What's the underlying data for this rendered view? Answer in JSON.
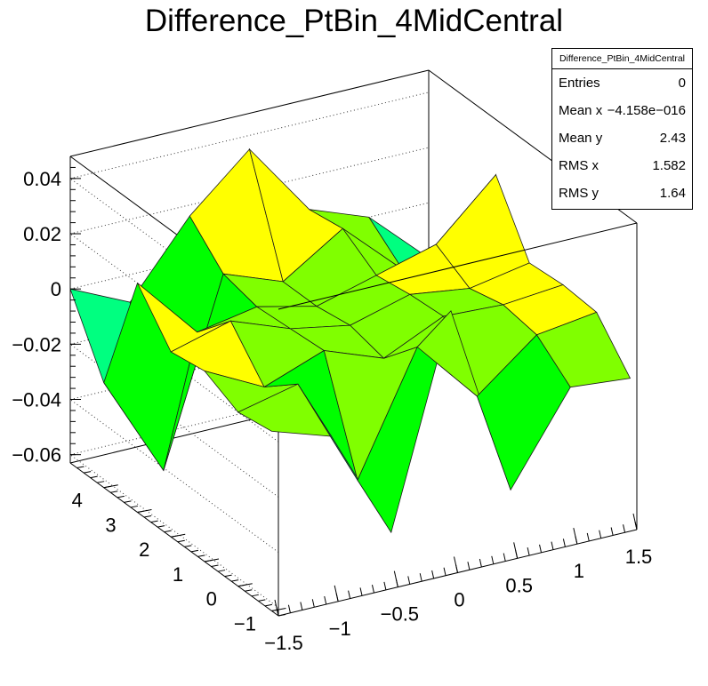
{
  "title": "Difference_PtBin_4MidCentral",
  "stats": {
    "name": "Difference_PtBin_4MidCentral",
    "rows": [
      {
        "label": "Entries",
        "value": "0"
      },
      {
        "label": "Mean x",
        "value": "−4.158e−016"
      },
      {
        "label": "Mean y",
        "value": "2.43"
      },
      {
        "label": "RMS x",
        "value": "1.582"
      },
      {
        "label": "RMS y",
        "value": "1.64"
      }
    ]
  },
  "chart_data": {
    "type": "surface",
    "title": "Difference_PtBin_4MidCentral",
    "x": [
      -1.5,
      -1.0,
      -0.5,
      0.0,
      0.5,
      1.0,
      1.5
    ],
    "y": [
      -1.0,
      0.0,
      1.0,
      2.0,
      3.0,
      4.0,
      5.0
    ],
    "xlim": [
      -1.5,
      1.5
    ],
    "ylim": [
      -1.2,
      5.0
    ],
    "zlim": [
      -0.063,
      0.048
    ],
    "x_ticks": [
      "−1.5",
      "−1",
      "−0.5",
      "0",
      "0.5",
      "1",
      "1.5"
    ],
    "x_tick_values": [
      -1.5,
      -1.0,
      -0.5,
      0.0,
      0.5,
      1.0,
      1.5
    ],
    "y_ticks": [
      "−1",
      "0",
      "1",
      "2",
      "3",
      "4"
    ],
    "y_tick_values": [
      -1,
      0,
      1,
      2,
      3,
      4
    ],
    "z_ticks": [
      "−0.06",
      "−0.04",
      "−0.02",
      "0",
      "0.02",
      "0.04"
    ],
    "z_tick_values": [
      -0.06,
      -0.04,
      -0.02,
      0.0,
      0.02,
      0.04
    ],
    "z_values": [
      [
        0.002,
        -0.005,
        -0.045,
        0.03,
        -0.04,
        -0.008,
        -0.01
      ],
      [
        0.0,
        0.005,
        -0.035,
        0.008,
        -0.015,
        0.002,
        0.005
      ],
      [
        0.006,
        -0.005,
        0.003,
        -0.005,
        0.005,
        0.004,
        0.006
      ],
      [
        0.004,
        0.01,
        0.002,
        -0.002,
        0.004,
        0.001,
        0.005
      ],
      [
        0.02,
        -0.003,
        0.001,
        -0.004,
        0.002,
        0.008,
        0.028
      ],
      [
        -0.025,
        -0.062,
        0.004,
        -0.004,
        0.01,
        -0.01,
        -0.055
      ],
      [
        0.0,
        -0.01,
        0.016,
        0.035,
        0.008,
        0.0,
        -0.02
      ]
    ],
    "colors": [
      "#2b00ff",
      "#0080ff",
      "#00ffff",
      "#00ff80",
      "#00ff00",
      "#80ff00",
      "#ffff00",
      "#ffa000",
      "#ff4000",
      "#c00000"
    ]
  }
}
